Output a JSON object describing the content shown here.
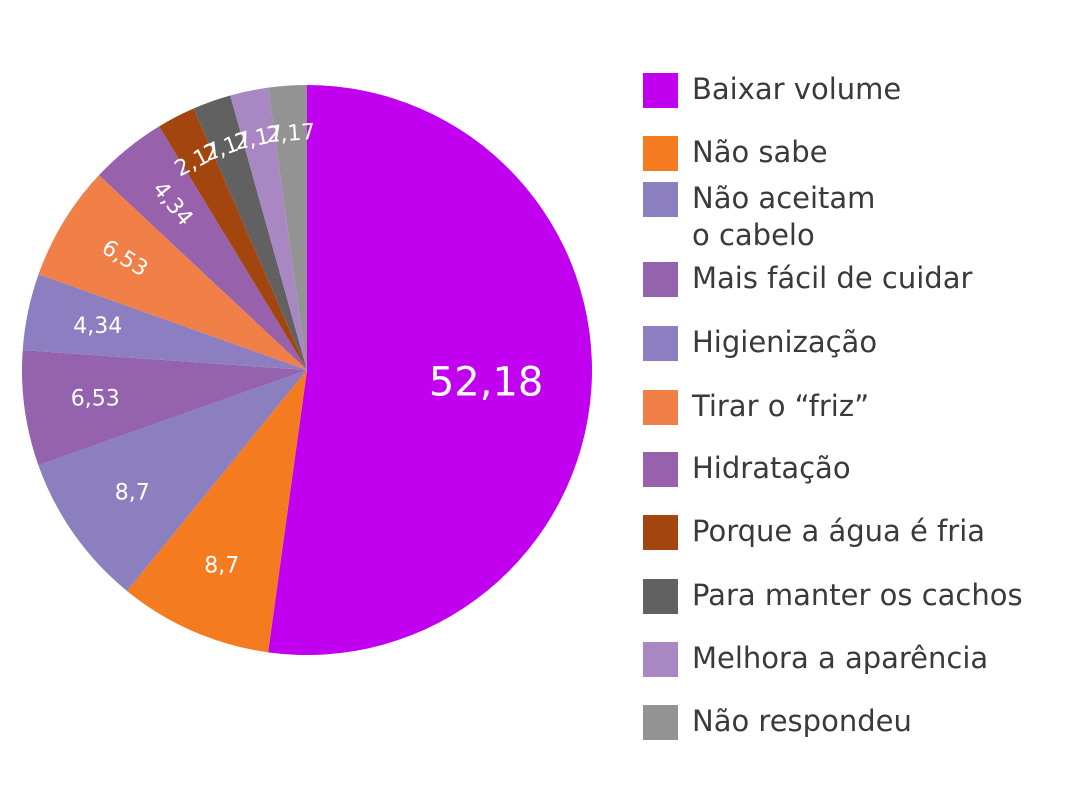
{
  "chart_data": {
    "type": "pie",
    "title": "",
    "slices": [
      {
        "label": "Baixar volume",
        "value": 52.18,
        "display": "52,18",
        "color": "#C000EE"
      },
      {
        "label": "Não sabe",
        "value": 8.7,
        "display": "8,7",
        "color": "#F47B20"
      },
      {
        "label": "Não aceitam\no cabelo",
        "value": 8.7,
        "display": "8,7",
        "color": "#8B7FBF"
      },
      {
        "label": "Mais fácil de cuidar",
        "value": 6.53,
        "display": "6,53",
        "color": "#9562AD"
      },
      {
        "label": "Higienização",
        "value": 4.34,
        "display": "4,34",
        "color": "#8C7EC0"
      },
      {
        "label": "Tirar o “friz”",
        "value": 6.53,
        "display": "6,53",
        "color": "#F07F48"
      },
      {
        "label": "Hidratação",
        "value": 4.34,
        "display": "4,34",
        "color": "#9861AC"
      },
      {
        "label": "Porque a água é fria",
        "value": 2.17,
        "display": "2,17",
        "color": "#A2450E"
      },
      {
        "label": "Para manter os cachos",
        "value": 2.17,
        "display": "2,17",
        "color": "#616161"
      },
      {
        "label": "Melhora a aparência",
        "value": 2.17,
        "display": "2,17",
        "color": "#A987C3"
      },
      {
        "label": "Não respondeu",
        "value": 2.17,
        "display": "2,17",
        "color": "#939393"
      }
    ],
    "legend_position": "right"
  }
}
